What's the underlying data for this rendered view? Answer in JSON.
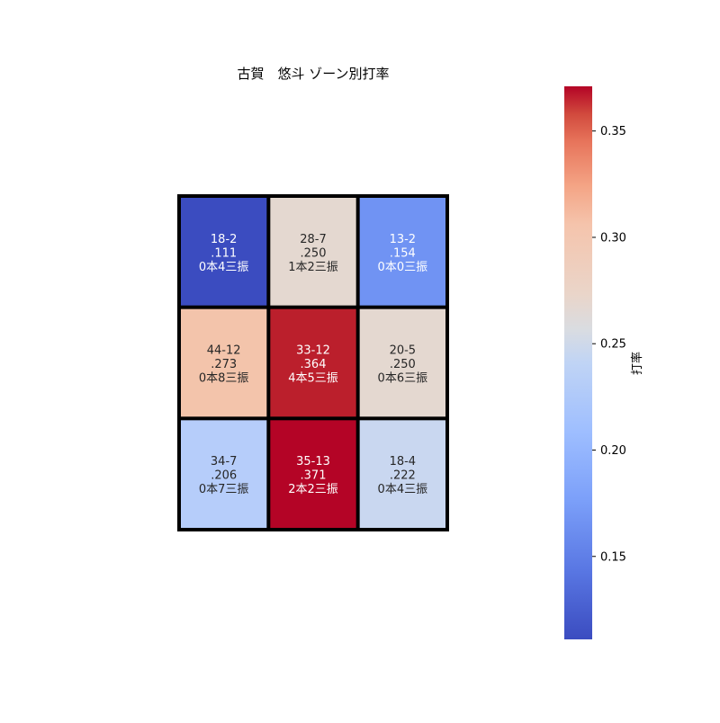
{
  "chart_data": {
    "type": "heatmap",
    "title": "古賀　悠斗 ゾーン別打率",
    "colormap": "coolwarm",
    "vmin": 0.111,
    "vmax": 0.371,
    "colorbar": {
      "label": "打率",
      "ticks": [
        0.15,
        0.2,
        0.25,
        0.3,
        0.35
      ],
      "tick_labels": [
        "0.15",
        "0.20",
        "0.25",
        "0.30",
        "0.35"
      ]
    },
    "cells": [
      [
        {
          "value": 0.111,
          "line1": "18-2",
          "line2": ".111",
          "line3": "0本4三振",
          "color": "#3b4cc0",
          "text_color": "#ffffff"
        },
        {
          "value": 0.25,
          "line1": "28-7",
          "line2": ".250",
          "line3": "1本2三振",
          "color": "#e4d8d0",
          "text_color": "#262626"
        },
        {
          "value": 0.154,
          "line1": "13-2",
          "line2": ".154",
          "line3": "0本0三振",
          "color": "#7093f3",
          "text_color": "#ffffff"
        }
      ],
      [
        {
          "value": 0.273,
          "line1": "44-12",
          "line2": ".273",
          "line3": "0本8三振",
          "color": "#f3c4ab",
          "text_color": "#262626"
        },
        {
          "value": 0.364,
          "line1": "33-12",
          "line2": ".364",
          "line3": "4本5三振",
          "color": "#bb1f2c",
          "text_color": "#ffffff"
        },
        {
          "value": 0.25,
          "line1": "20-5",
          "line2": ".250",
          "line3": "0本6三振",
          "color": "#e4d8d0",
          "text_color": "#262626"
        }
      ],
      [
        {
          "value": 0.206,
          "line1": "34-7",
          "line2": ".206",
          "line3": "0本7三振",
          "color": "#b6cdfa",
          "text_color": "#262626"
        },
        {
          "value": 0.371,
          "line1": "35-13",
          "line2": ".371",
          "line3": "2本2三振",
          "color": "#b40426",
          "text_color": "#ffffff"
        },
        {
          "value": 0.222,
          "line1": "18-4",
          "line2": ".222",
          "line3": "0本4三振",
          "color": "#c9d7f0",
          "text_color": "#262626"
        }
      ]
    ],
    "grid_line_color": "#000000"
  }
}
